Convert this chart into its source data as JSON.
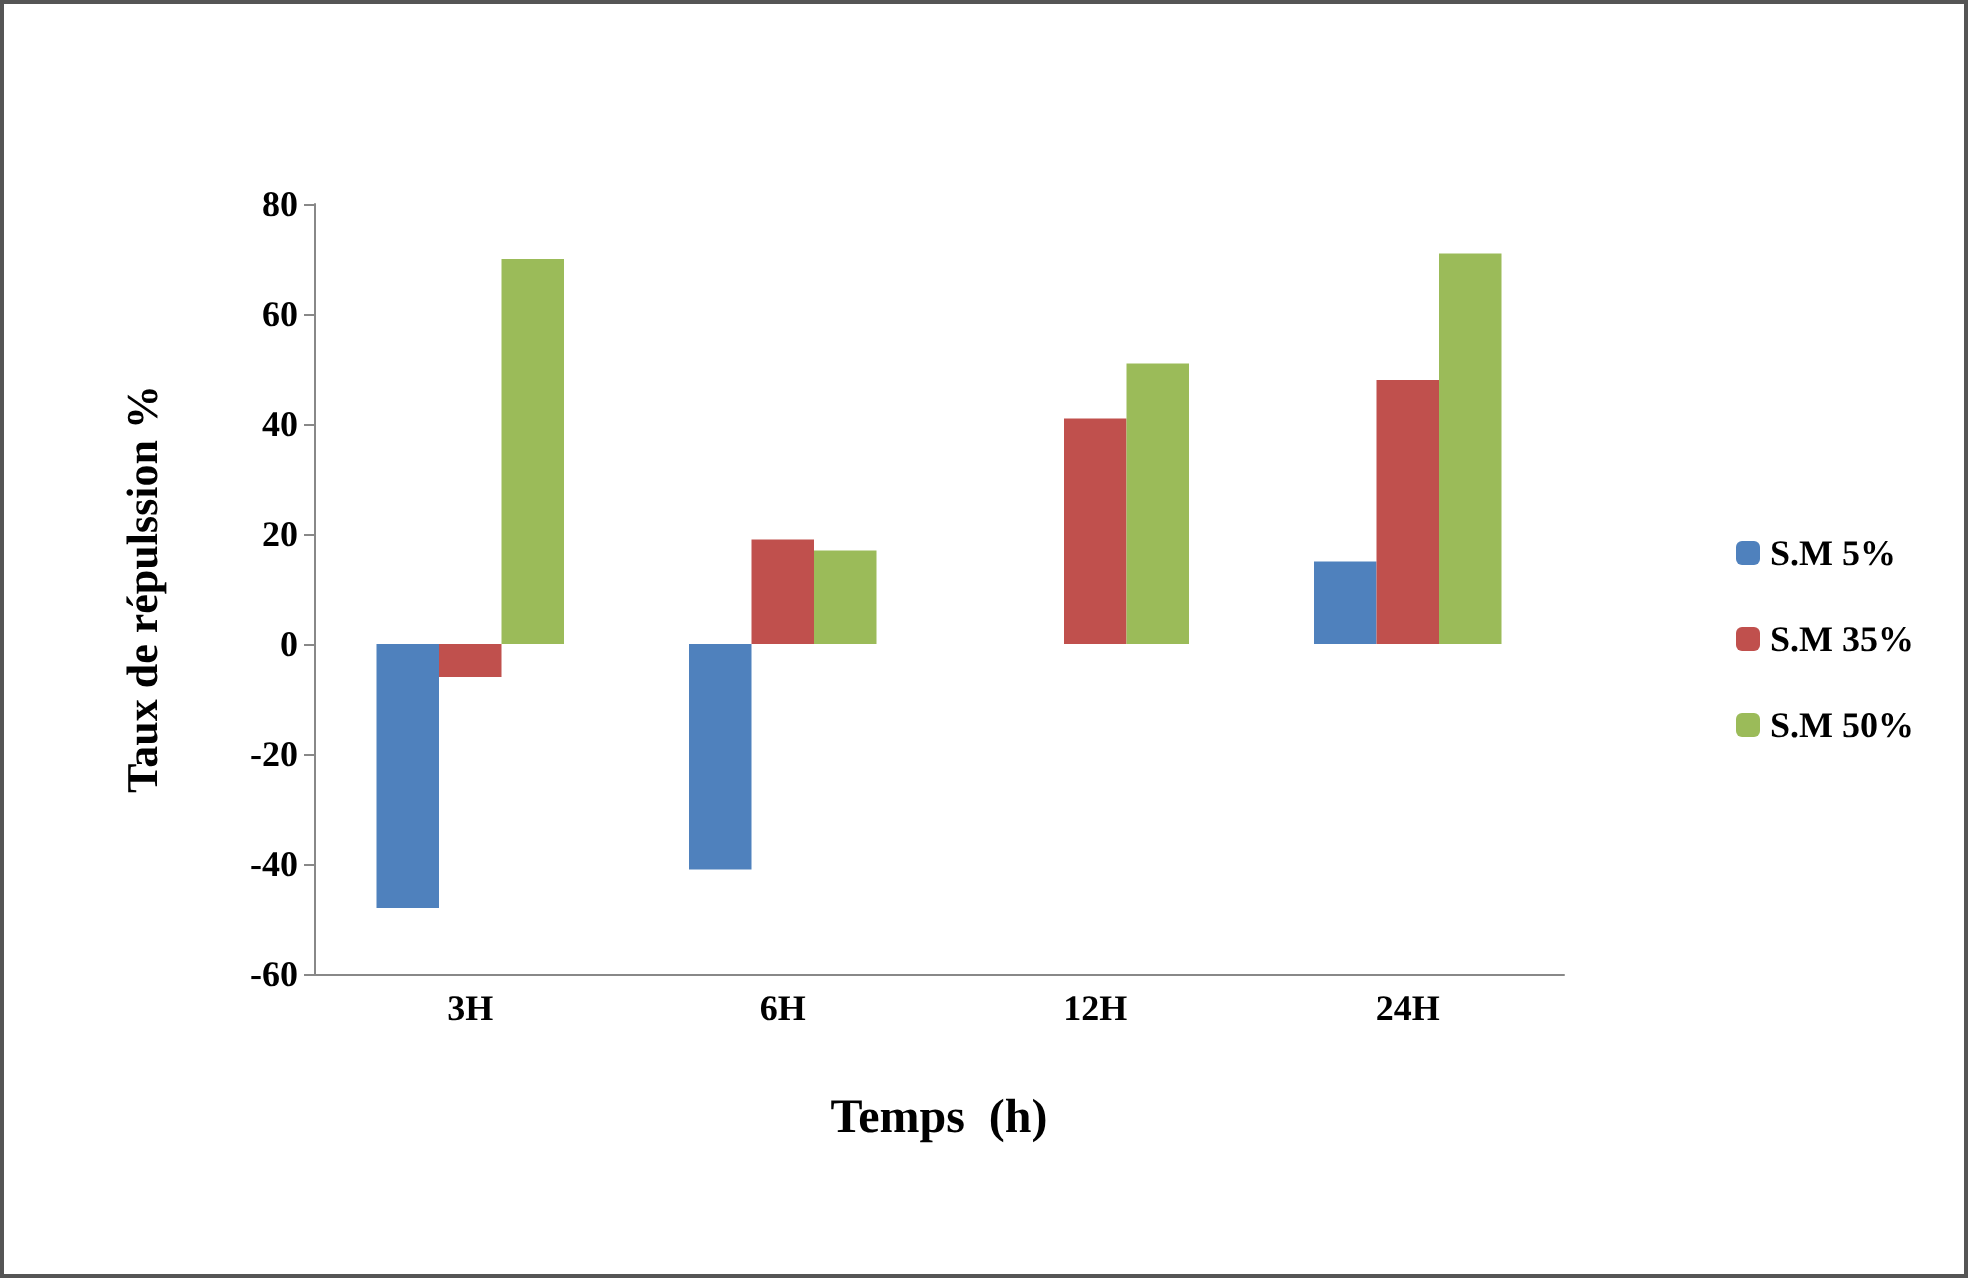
{
  "chart_data": {
    "type": "bar",
    "xlabel": "Temps  (h)",
    "ylabel": "Taux de répulssion %",
    "categories": [
      "3H",
      "6H",
      "12H",
      "24H"
    ],
    "series": [
      {
        "name": "S.M 5%",
        "color": "#4f81bd",
        "values": [
          -48,
          -41,
          0,
          15
        ]
      },
      {
        "name": "S.M 35%",
        "color": "#c0504d",
        "values": [
          -6,
          19,
          41,
          48
        ]
      },
      {
        "name": "S.M 50%",
        "color": "#9bbb59",
        "values": [
          70,
          17,
          51,
          71
        ]
      }
    ],
    "ylim": [
      -60,
      80
    ],
    "yticks": [
      -60,
      -40,
      -20,
      0,
      20,
      40,
      60,
      80
    ],
    "grid": false,
    "legend": "right"
  }
}
